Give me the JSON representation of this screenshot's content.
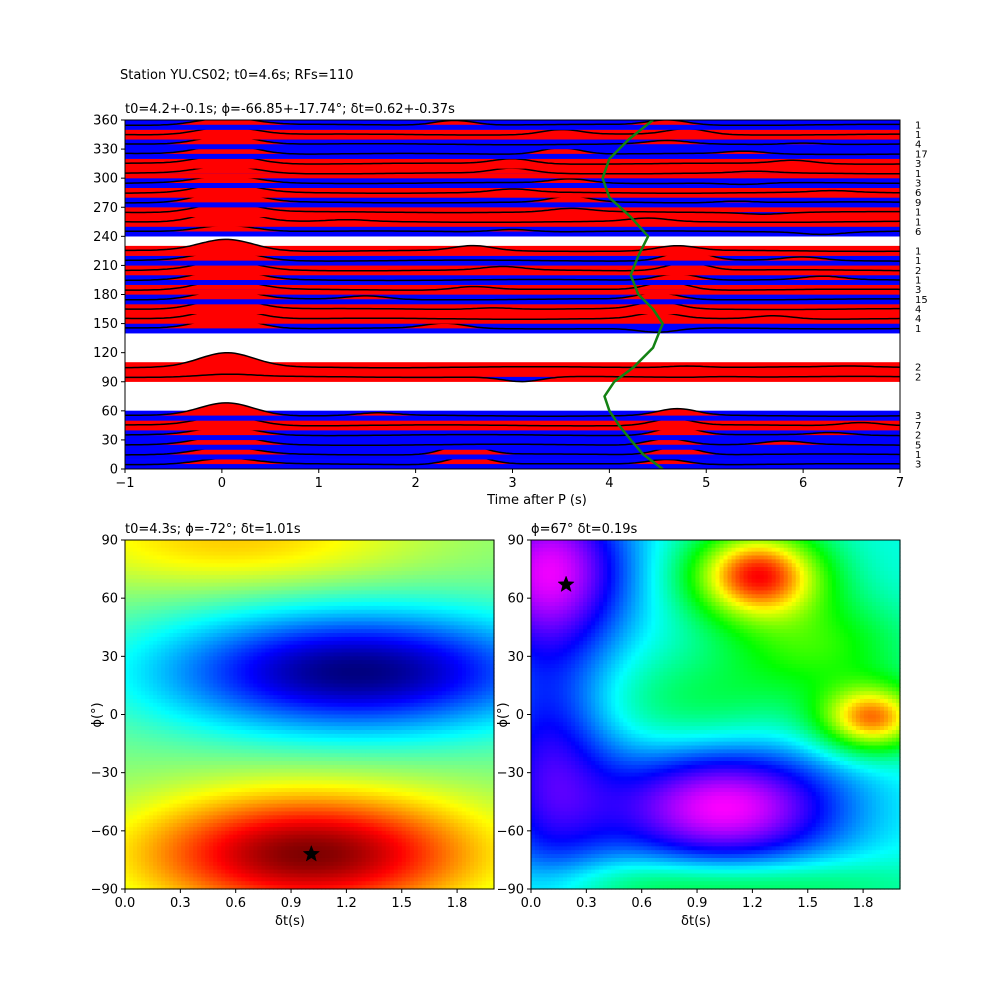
{
  "suptitle": "Station YU.CS02; t0=4.6s; RFs=110",
  "chart_data": [
    {
      "type": "line",
      "title": "t0=4.2+-0.1s; ϕ=-66.85+-17.74°; δt=0.62+-0.37s",
      "xlabel": "Time after P (s)",
      "ylabel": "",
      "xlim": [
        -1,
        7
      ],
      "ylim": [
        0,
        360
      ],
      "xticks": [
        "−1",
        "0",
        "1",
        "2",
        "3",
        "4",
        "5",
        "6",
        "7"
      ],
      "yticks": [
        "0",
        "30",
        "60",
        "90",
        "120",
        "150",
        "180",
        "210",
        "240",
        "270",
        "300",
        "330",
        "360"
      ],
      "traces": [
        {
          "baz": 5,
          "count": "3",
          "amp": 0.35,
          "sec": [
            [
              2.55,
              0.5
            ],
            [
              4.6,
              0.3
            ]
          ],
          "fill": "blue"
        },
        {
          "baz": 15,
          "count": "1",
          "amp": 0.45,
          "sec": [
            [
              2.5,
              0.6
            ],
            [
              4.7,
              0.5
            ]
          ],
          "fill": "blue"
        },
        {
          "baz": 25,
          "count": "5",
          "amp": 0.55,
          "sec": [
            [
              4.6,
              0.4
            ],
            [
              5.8,
              0.2
            ]
          ],
          "fill": "blue"
        },
        {
          "baz": 35,
          "count": "2",
          "amp": 0.5,
          "sec": [
            [
              4.7,
              0.5
            ],
            [
              6.3,
              0.15
            ]
          ],
          "fill": "blue"
        },
        {
          "baz": 45,
          "count": "7",
          "amp": 0.6,
          "sec": [
            [
              4.65,
              0.4
            ],
            [
              6.6,
              0.2
            ]
          ],
          "fill": "red"
        },
        {
          "baz": 55,
          "count": "3",
          "amp": 0.8,
          "sec": [
            [
              4.7,
              0.4
            ],
            [
              1.6,
              0.15
            ]
          ],
          "fill": "blue"
        },
        {
          "baz": 95,
          "count": "2",
          "amp": 0.15,
          "sec": [
            [
              3.1,
              -0.3
            ],
            [
              5.2,
              0.05
            ]
          ],
          "fill": "red"
        },
        {
          "baz": 105,
          "count": "2",
          "amp": 0.85,
          "sec": [
            [
              4.8,
              0.1
            ],
            [
              6.5,
              0.05
            ]
          ],
          "fill": "red"
        },
        {
          "baz": 145,
          "count": "1",
          "amp": 0.7,
          "sec": [
            [
              2.3,
              0.3
            ],
            [
              4.5,
              -0.25
            ]
          ],
          "fill": "blue"
        },
        {
          "baz": 155,
          "count": "4",
          "amp": 0.65,
          "sec": [
            [
              4.5,
              0.35
            ],
            [
              5.7,
              0.2
            ]
          ],
          "fill": "red"
        },
        {
          "baz": 165,
          "count": "4",
          "amp": 0.7,
          "sec": [
            [
              4.5,
              0.45
            ],
            [
              2.8,
              0.1
            ]
          ],
          "fill": "red"
        },
        {
          "baz": 175,
          "count": "15",
          "amp": 0.6,
          "sec": [
            [
              4.5,
              0.4
            ],
            [
              1.5,
              0.2
            ]
          ],
          "fill": "blue"
        },
        {
          "baz": 185,
          "count": "3",
          "amp": 0.6,
          "sec": [
            [
              4.6,
              0.5
            ],
            [
              2.6,
              0.2
            ]
          ],
          "fill": "red"
        },
        {
          "baz": 195,
          "count": "1",
          "amp": 0.65,
          "sec": [
            [
              4.7,
              0.4
            ],
            [
              6.2,
              0.2
            ]
          ],
          "fill": "blue"
        },
        {
          "baz": 205,
          "count": "2",
          "amp": 0.6,
          "sec": [
            [
              4.8,
              0.5
            ],
            [
              2.9,
              0.2
            ]
          ],
          "fill": "red"
        },
        {
          "baz": 215,
          "count": "1",
          "amp": 0.6,
          "sec": [
            [
              4.8,
              0.6
            ],
            [
              6.0,
              0.2
            ]
          ],
          "fill": "blue"
        },
        {
          "baz": 225,
          "count": "1",
          "amp": 0.7,
          "sec": [
            [
              2.6,
              0.3
            ],
            [
              4.7,
              0.3
            ]
          ],
          "fill": "red"
        },
        {
          "baz": 245,
          "count": "6",
          "amp": 0.4,
          "sec": [
            [
              3.0,
              0.15
            ],
            [
              6.2,
              -0.15
            ]
          ],
          "fill": "blue"
        },
        {
          "baz": 255,
          "count": "1",
          "amp": 0.7,
          "sec": [
            [
              4.4,
              0.2
            ],
            [
              1.3,
              0.1
            ]
          ],
          "fill": "red"
        },
        {
          "baz": 265,
          "count": "1",
          "amp": 0.6,
          "sec": [
            [
              3.6,
              0.2
            ],
            [
              5.6,
              -0.1
            ]
          ],
          "fill": "red"
        },
        {
          "baz": 275,
          "count": "9",
          "amp": 0.7,
          "sec": [
            [
              3.6,
              0.35
            ],
            [
              5.3,
              0.1
            ]
          ],
          "fill": "blue"
        },
        {
          "baz": 285,
          "count": "6",
          "amp": 0.55,
          "sec": [
            [
              3.0,
              0.2
            ],
            [
              6.3,
              0.1
            ]
          ],
          "fill": "red"
        },
        {
          "baz": 295,
          "count": "3",
          "amp": 0.45,
          "sec": [
            [
              3.6,
              0.25
            ],
            [
              5.4,
              -0.1
            ]
          ],
          "fill": "blue"
        },
        {
          "baz": 305,
          "count": "1",
          "amp": 0.45,
          "sec": [
            [
              3.0,
              0.3
            ],
            [
              5.5,
              0.1
            ]
          ],
          "fill": "red"
        },
        {
          "baz": 315,
          "count": "3",
          "amp": 0.55,
          "sec": [
            [
              3.0,
              0.3
            ],
            [
              5.9,
              0.2
            ]
          ],
          "fill": "red"
        },
        {
          "baz": 325,
          "count": "17",
          "amp": 0.6,
          "sec": [
            [
              3.5,
              0.4
            ],
            [
              5.4,
              0.15
            ]
          ],
          "fill": "blue"
        },
        {
          "baz": 335,
          "count": "4",
          "amp": 0.55,
          "sec": [
            [
              4.6,
              0.2
            ],
            [
              6.0,
              0.1
            ]
          ],
          "fill": "blue"
        },
        {
          "baz": 345,
          "count": "1",
          "amp": 0.5,
          "sec": [
            [
              4.8,
              0.35
            ],
            [
              3.5,
              0.3
            ]
          ],
          "fill": "red"
        },
        {
          "baz": 355,
          "count": "1",
          "amp": 0.45,
          "sec": [
            [
              2.4,
              0.3
            ],
            [
              4.6,
              0.3
            ]
          ],
          "fill": "blue"
        }
      ],
      "t0_curve": {
        "x": [
          4.55,
          4.35,
          4.22,
          4.1,
          4.0,
          3.95,
          4.05,
          4.25,
          4.45,
          4.55,
          4.45,
          4.3,
          4.22,
          4.3,
          4.4,
          4.22,
          4.0,
          3.93,
          4.0,
          4.2,
          4.45
        ],
        "y": [
          0,
          15,
          30,
          45,
          60,
          75,
          90,
          105,
          125,
          150,
          165,
          180,
          200,
          220,
          240,
          260,
          280,
          300,
          320,
          340,
          360
        ],
        "color": "#138213"
      }
    },
    {
      "type": "heatmap",
      "title": "t0=4.3s; ϕ=-72°; δt=1.01s",
      "xlabel": "δt(s)",
      "ylabel": "ϕ(°)",
      "xlim": [
        0,
        2
      ],
      "ylim": [
        -90,
        90
      ],
      "xticks": [
        "0.0",
        "0.3",
        "0.6",
        "0.9",
        "1.2",
        "1.5",
        "1.8"
      ],
      "yticks": [
        "−90",
        "−60",
        "−30",
        "0",
        "30",
        "60",
        "90"
      ],
      "colormap": "jet",
      "features": [
        {
          "x": 0.6,
          "y": 90,
          "sx": 0.7,
          "sy": 18,
          "v": 0.35
        },
        {
          "x": 1.25,
          "y": 22,
          "sx": 0.75,
          "sy": 22,
          "v": -1.0
        },
        {
          "x": 1.0,
          "y": -72,
          "sx": 0.65,
          "sy": 22,
          "v": 1.0
        }
      ],
      "star": {
        "x": 1.01,
        "y": -72
      }
    },
    {
      "type": "heatmap",
      "title": "ϕ=67° δt=0.19s",
      "xlabel": "δt(s)",
      "ylabel": "ϕ(°)",
      "xlim": [
        0,
        2
      ],
      "ylim": [
        -90,
        90
      ],
      "xticks": [
        "0.0",
        "0.3",
        "0.6",
        "0.9",
        "1.2",
        "1.5",
        "1.8"
      ],
      "yticks": [
        "−90",
        "−60",
        "−30",
        "0",
        "30",
        "60",
        "90"
      ],
      "colormap": "hsv",
      "features": [
        {
          "x": 1.23,
          "y": 72,
          "sx": 0.25,
          "sy": 16,
          "v": -1.0
        },
        {
          "x": 1.85,
          "y": -2,
          "sx": 0.2,
          "sy": 12,
          "v": -0.85
        },
        {
          "x": 1.55,
          "y": 35,
          "sx": 0.35,
          "sy": 18,
          "v": -0.35
        },
        {
          "x": 0.1,
          "y": 75,
          "sx": 0.3,
          "sy": 30,
          "v": 0.7
        },
        {
          "x": 1.05,
          "y": -48,
          "sx": 0.45,
          "sy": 22,
          "v": 0.75
        },
        {
          "x": 0.1,
          "y": -30,
          "sx": 0.25,
          "sy": 45,
          "v": 0.45
        },
        {
          "x": 0.9,
          "y": 5,
          "sx": 0.4,
          "sy": 18,
          "v": -0.2
        },
        {
          "x": 1.0,
          "y": -88,
          "sx": 0.7,
          "sy": 10,
          "v": -0.3
        }
      ],
      "star": {
        "x": 0.19,
        "y": 67
      }
    }
  ]
}
